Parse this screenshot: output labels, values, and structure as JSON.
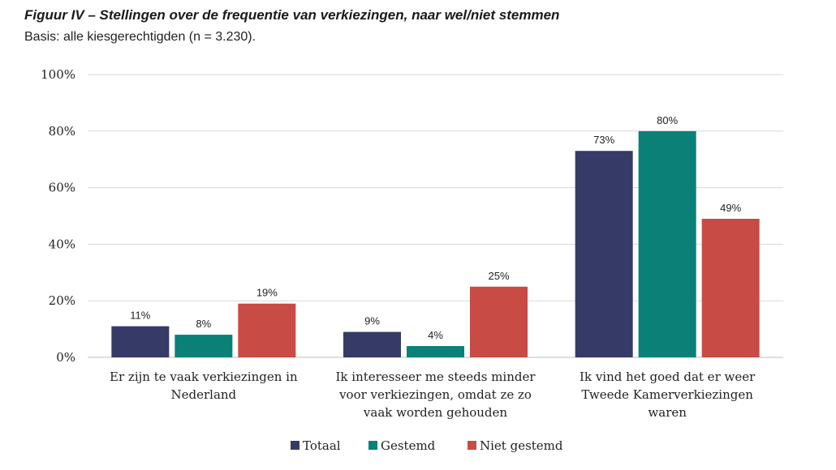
{
  "figure": {
    "title": "Figuur IV – Stellingen over de frequentie van verkiezingen, naar wel/niet stemmen",
    "subtitle": "Basis: alle kiesgerechtigden (n = 3.230)."
  },
  "colors": {
    "Totaal": "#363a66",
    "Gestemd": "#0a8077",
    "Niet gestemd": "#c84b45",
    "grid": "#d9d9d9"
  },
  "chart_data": {
    "type": "bar",
    "title": "",
    "xlabel": "",
    "ylabel": "",
    "ylim": [
      0,
      100
    ],
    "yticks": [
      "0%",
      "20%",
      "40%",
      "60%",
      "80%",
      "100%"
    ],
    "grid": true,
    "legend": "bottom",
    "categories": [
      [
        "Er zijn te vaak verkiezingen in",
        "Nederland"
      ],
      [
        "Ik interesseer me steeds minder",
        "voor verkiezingen, omdat ze zo",
        "vaak worden gehouden"
      ],
      [
        "Ik vind het goed dat er weer",
        "Tweede Kamerverkiezingen",
        "waren"
      ]
    ],
    "series": [
      {
        "name": "Totaal",
        "values": [
          11,
          9,
          73
        ],
        "labels": [
          "11%",
          "9%",
          "73%"
        ]
      },
      {
        "name": "Gestemd",
        "values": [
          8,
          4,
          80
        ],
        "labels": [
          "8%",
          "4%",
          "80%"
        ]
      },
      {
        "name": "Niet gestemd",
        "values": [
          19,
          25,
          49
        ],
        "labels": [
          "19%",
          "25%",
          "49%"
        ]
      }
    ]
  }
}
